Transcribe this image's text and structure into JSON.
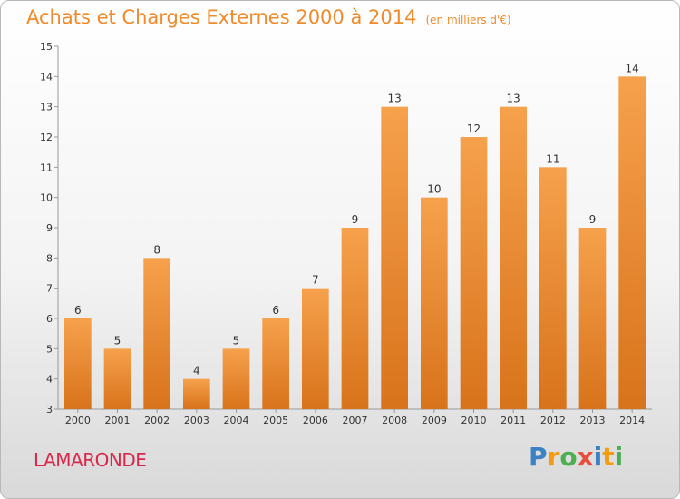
{
  "chart_data": {
    "type": "bar",
    "title": "Achats et Charges Externes 2000 à 2014",
    "subtitle": "(en milliers d'€)",
    "categories": [
      "2000",
      "2001",
      "2002",
      "2003",
      "2004",
      "2005",
      "2006",
      "2007",
      "2008",
      "2009",
      "2010",
      "2011",
      "2012",
      "2013",
      "2014"
    ],
    "values": [
      6,
      5,
      8,
      4,
      5,
      6,
      7,
      9,
      13,
      10,
      12,
      13,
      11,
      9,
      14
    ],
    "ylim": [
      3,
      15
    ],
    "yticks": [
      3,
      4,
      5,
      6,
      7,
      8,
      9,
      10,
      11,
      12,
      13,
      14,
      15
    ],
    "grid": false,
    "legend": "none",
    "bar_color_top": "#f6a14c",
    "bar_color_bottom": "#d8731b"
  },
  "footer": {
    "location": "LAMARONDE",
    "logo_text": "Proxiti",
    "logo_letters": [
      {
        "char": "P",
        "color": "#3b82c4"
      },
      {
        "char": "r",
        "color": "#f39c12"
      },
      {
        "char": "o",
        "color": "#4caf50"
      },
      {
        "char": "x",
        "color": "#e74c3c"
      },
      {
        "char": "i",
        "color": "#3b82c4"
      },
      {
        "char": "t",
        "color": "#f39c12"
      },
      {
        "char": "i",
        "color": "#4caf50"
      }
    ]
  }
}
